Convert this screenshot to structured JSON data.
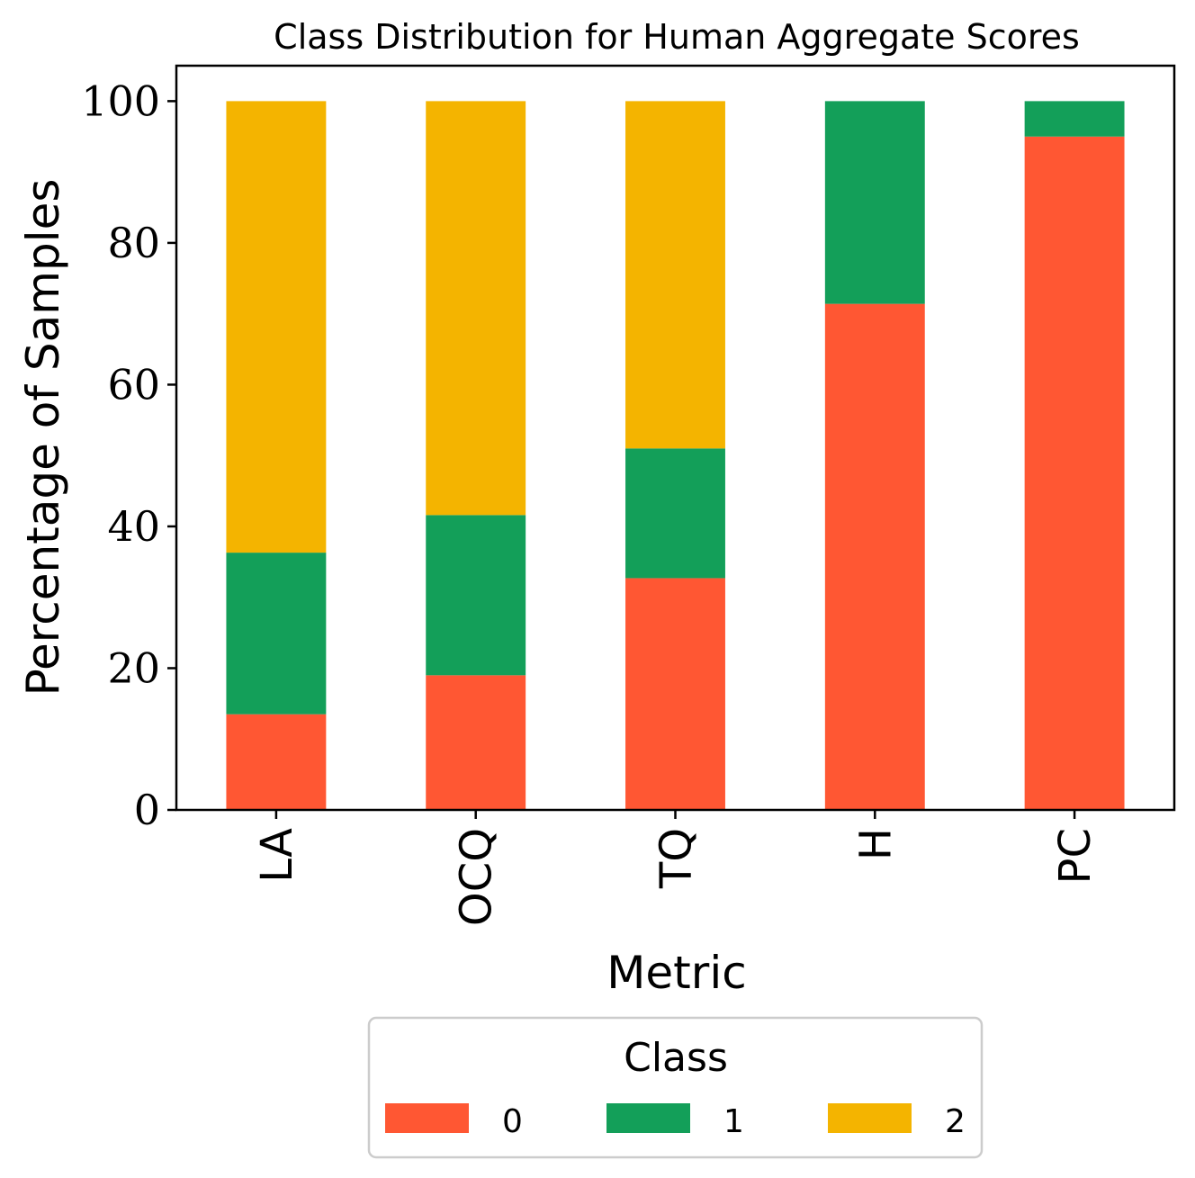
{
  "chart_data": {
    "type": "bar",
    "stacked": true,
    "title": "Class Distribution for Human Aggregate Scores",
    "xlabel": "Metric",
    "ylabel": "Percentage of Samples",
    "categories": [
      "LA",
      "OCQ",
      "TQ",
      "H",
      "PC"
    ],
    "series": [
      {
        "name": "0",
        "color": "#ff5733",
        "values": [
          13.5,
          19.0,
          32.7,
          71.4,
          95.0
        ]
      },
      {
        "name": "1",
        "color": "#139f59",
        "values": [
          22.8,
          22.6,
          18.3,
          28.6,
          5.0
        ]
      },
      {
        "name": "2",
        "color": "#f4b400",
        "values": [
          63.7,
          58.4,
          49.0,
          0,
          0
        ]
      }
    ],
    "ylim": [
      0,
      105
    ],
    "yticks": [
      "0",
      "20",
      "40",
      "60",
      "80",
      "100"
    ],
    "grid": false,
    "legend": {
      "title": "Class",
      "placement": "bottom-center",
      "entries": [
        "0",
        "1",
        "2"
      ]
    }
  }
}
